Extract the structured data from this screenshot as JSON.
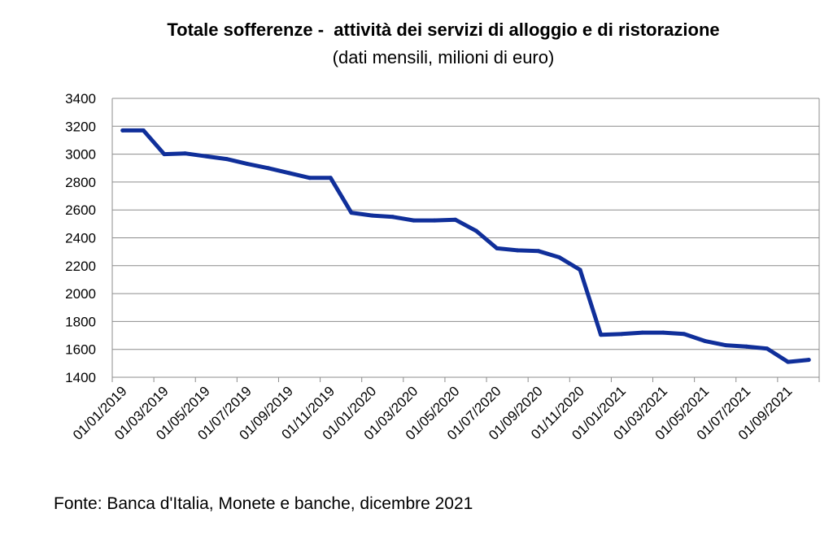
{
  "chart_data": {
    "type": "line",
    "title": "Totale sofferenze -  attività dei servizi di alloggio e di ristorazione",
    "subtitle": "(dati mensili, milioni di euro)",
    "xlabel": "",
    "ylabel": "",
    "ylim": [
      1400,
      3400
    ],
    "yticks": [
      1400,
      1600,
      1800,
      2000,
      2200,
      2400,
      2600,
      2800,
      3000,
      3200,
      3400
    ],
    "xtick_labels": [
      "01/01/2019",
      "01/03/2019",
      "01/05/2019",
      "01/07/2019",
      "01/09/2019",
      "01/11/2019",
      "01/01/2020",
      "01/03/2020",
      "01/05/2020",
      "01/07/2020",
      "01/09/2020",
      "01/11/2020",
      "01/01/2021",
      "01/03/2021",
      "01/05/2021",
      "01/07/2021",
      "01/09/2021"
    ],
    "grid": "horizontal",
    "legend": "none",
    "line_color": "#102f9a",
    "series": [
      {
        "x": [
          "01/01/2019",
          "01/02/2019",
          "01/03/2019",
          "01/04/2019",
          "01/05/2019",
          "01/06/2019",
          "01/07/2019",
          "01/08/2019",
          "01/09/2019",
          "01/10/2019",
          "01/11/2019",
          "01/12/2019",
          "01/01/2020",
          "01/02/2020",
          "01/03/2020",
          "01/04/2020",
          "01/05/2020",
          "01/06/2020",
          "01/07/2020",
          "01/08/2020",
          "01/09/2020",
          "01/10/2020",
          "01/11/2020",
          "01/12/2020",
          "01/01/2021",
          "01/02/2021",
          "01/03/2021",
          "01/04/2021",
          "01/05/2021",
          "01/06/2021",
          "01/07/2021",
          "01/08/2021",
          "01/09/2021",
          "01/10/2021"
        ],
        "values": [
          3170,
          3170,
          3000,
          3005,
          2985,
          2965,
          2930,
          2900,
          2865,
          2830,
          2830,
          2580,
          2560,
          2550,
          2525,
          2525,
          2530,
          2450,
          2325,
          2310,
          2305,
          2260,
          2170,
          1705,
          1710,
          1720,
          1720,
          1710,
          1660,
          1630,
          1620,
          1605,
          1510,
          1525
        ]
      }
    ]
  },
  "source_note": "Fonte: Banca d'Italia, Monete e banche, dicembre 2021"
}
